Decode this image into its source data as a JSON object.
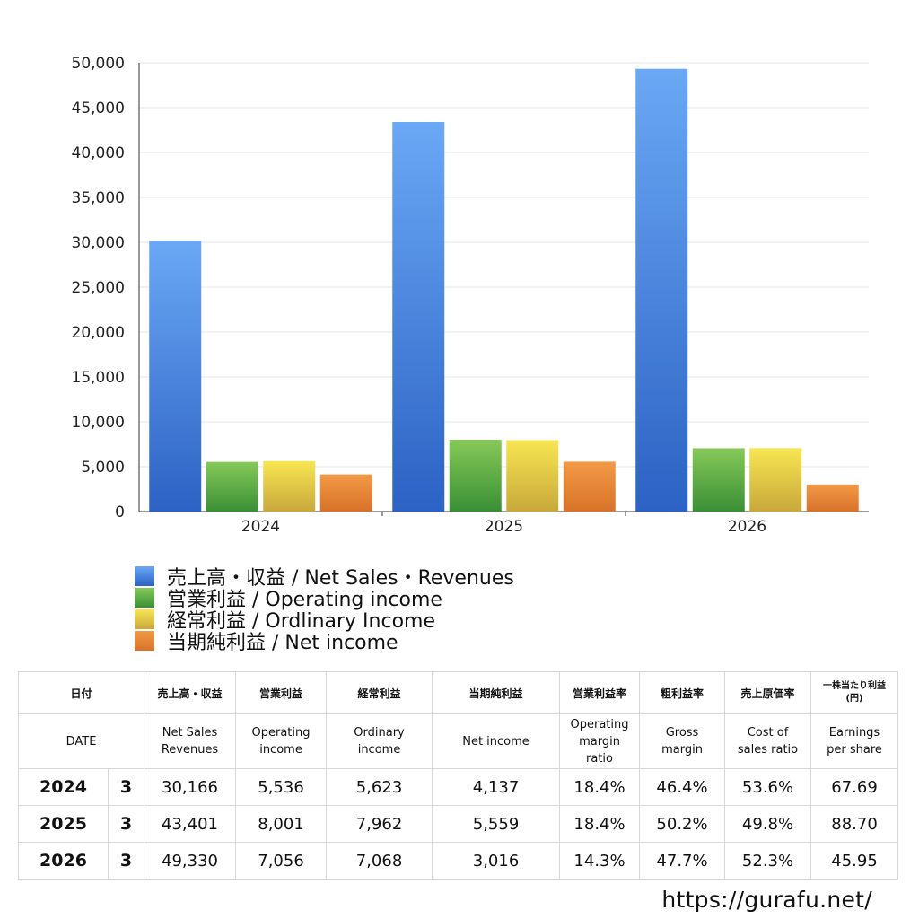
{
  "chart_data": {
    "type": "bar",
    "categories": [
      "2024",
      "2025",
      "2026"
    ],
    "ylim": [
      0,
      50000
    ],
    "yticks": [
      "0",
      "5,000",
      "10,000",
      "15,000",
      "20,000",
      "25,000",
      "30,000",
      "35,000",
      "40,000",
      "45,000",
      "50,000"
    ],
    "series": [
      {
        "name": "売上高・収益 / Net Sales・Revenues",
        "values": [
          30166,
          43401,
          49330
        ],
        "color_top": "#6aa8f5",
        "color_bottom": "#2c62c4"
      },
      {
        "name": "営業利益 / Operating income",
        "values": [
          5536,
          8001,
          7056
        ],
        "color_top": "#86c959",
        "color_bottom": "#3a8f35"
      },
      {
        "name": "経常利益 / Ordlinary Income",
        "values": [
          5623,
          7962,
          7068
        ],
        "color_top": "#f7e652",
        "color_bottom": "#c8a83b"
      },
      {
        "name": "当期純利益 / Net income",
        "values": [
          4137,
          5559,
          3016
        ],
        "color_top": "#f29a45",
        "color_bottom": "#d8722a"
      }
    ],
    "grid": true,
    "legend_position": "bottom-left"
  },
  "table": {
    "headers_ja": [
      "日付",
      "売上高・収益",
      "営業利益",
      "経常利益",
      "当期純利益",
      "営業利益率",
      "粗利益率",
      "売上原価率",
      "一株当たり利益",
      "(円)"
    ],
    "headers_en": [
      "DATE",
      "Net Sales",
      "Revenues",
      "Operating",
      "income",
      "Ordinary",
      "income",
      "Net income",
      "Operating",
      "margin",
      "ratio",
      "Gross",
      "margin",
      "Cost of",
      "sales ratio",
      "Earnings",
      "per share"
    ],
    "rows": [
      {
        "year": "2024",
        "month": "3",
        "sales": "30,166",
        "op": "5,536",
        "ord": "5,623",
        "net": "4,137",
        "opm": "18.4%",
        "gm": "46.4%",
        "cos": "53.6%",
        "eps": "67.69"
      },
      {
        "year": "2025",
        "month": "3",
        "sales": "43,401",
        "op": "8,001",
        "ord": "7,962",
        "net": "5,559",
        "opm": "18.4%",
        "gm": "50.2%",
        "cos": "49.8%",
        "eps": "88.70"
      },
      {
        "year": "2026",
        "month": "3",
        "sales": "49,330",
        "op": "7,056",
        "ord": "7,068",
        "net": "3,016",
        "opm": "14.3%",
        "gm": "47.7%",
        "cos": "52.3%",
        "eps": "45.95"
      }
    ]
  },
  "site_url": "https://gurafu.net/"
}
